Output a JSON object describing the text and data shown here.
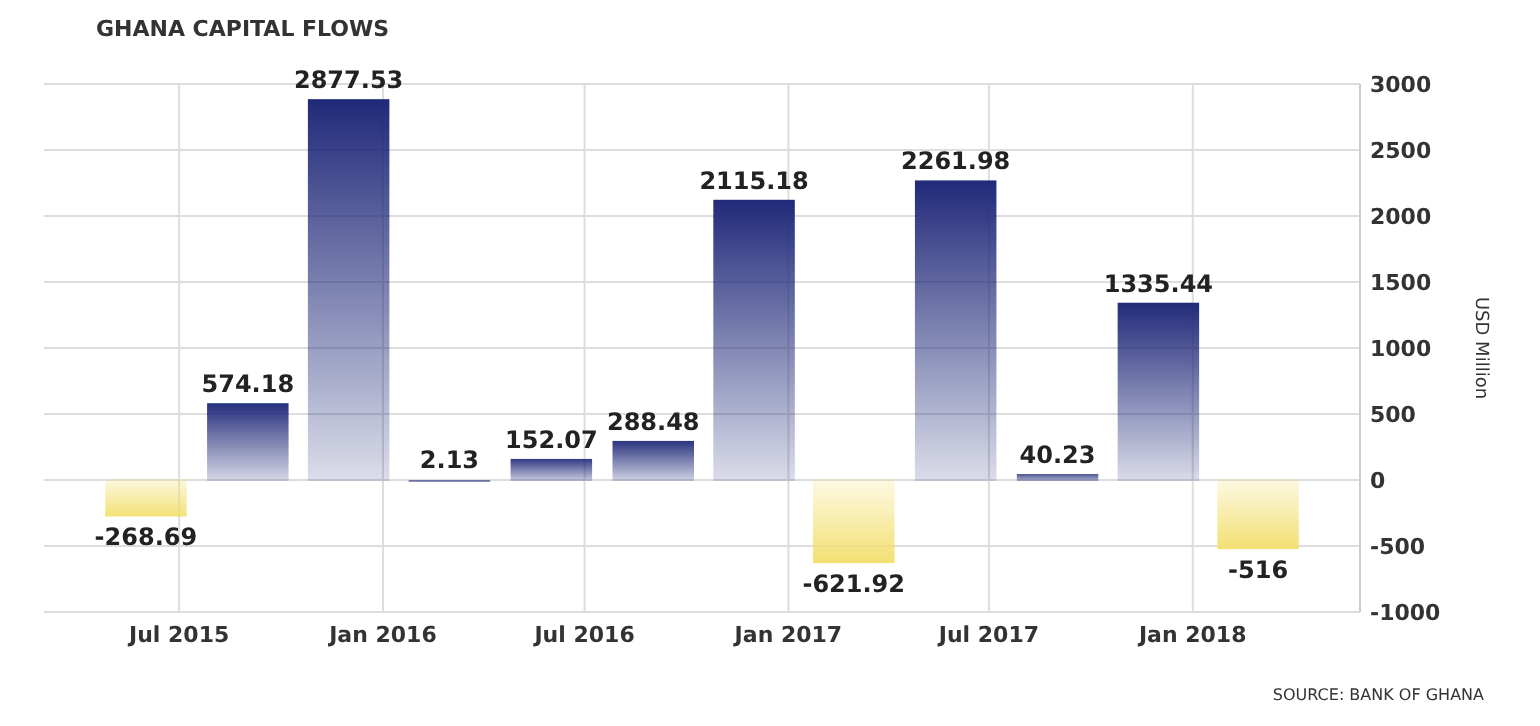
{
  "chart_data": {
    "type": "bar",
    "title": "GHANA CAPITAL FLOWS",
    "ylabel": "USD Million",
    "x": [
      "2015-06",
      "2015-09",
      "2015-12",
      "2016-03",
      "2016-06",
      "2016-09",
      "2016-12",
      "2017-03",
      "2017-06",
      "2017-09",
      "2017-12",
      "2018-03"
    ],
    "values": [
      -268.69,
      574.18,
      2877.53,
      2.13,
      152.07,
      288.48,
      2115.18,
      -621.92,
      2261.98,
      40.23,
      1335.44,
      -516
    ],
    "colors": [
      "#f3df6e",
      "#1e2878",
      "#1e2878",
      "#1e2878",
      "#1e2878",
      "#1e2878",
      "#1e2878",
      "#f3df6e",
      "#1e2878",
      "#1e2878",
      "#1e2878",
      "#f3df6e"
    ],
    "xlim": [
      "2015-03",
      "2018-06"
    ],
    "xticks": [
      {
        "value": "2015-07",
        "label": "Jul 2015"
      },
      {
        "value": "2016-01",
        "label": "Jan 2016"
      },
      {
        "value": "2016-07",
        "label": "Jul 2016"
      },
      {
        "value": "2017-01",
        "label": "Jan 2017"
      },
      {
        "value": "2017-07",
        "label": "Jul 2017"
      },
      {
        "value": "2018-01",
        "label": "Jan 2018"
      }
    ],
    "ylim": [
      -1000,
      3000
    ],
    "yticks": [
      -1000,
      -500,
      0,
      500,
      1000,
      1500,
      2000,
      2500,
      3000
    ],
    "grid": true,
    "data_labels": true,
    "annotations": [
      "SOURCE: BANK OF GHANA"
    ]
  }
}
